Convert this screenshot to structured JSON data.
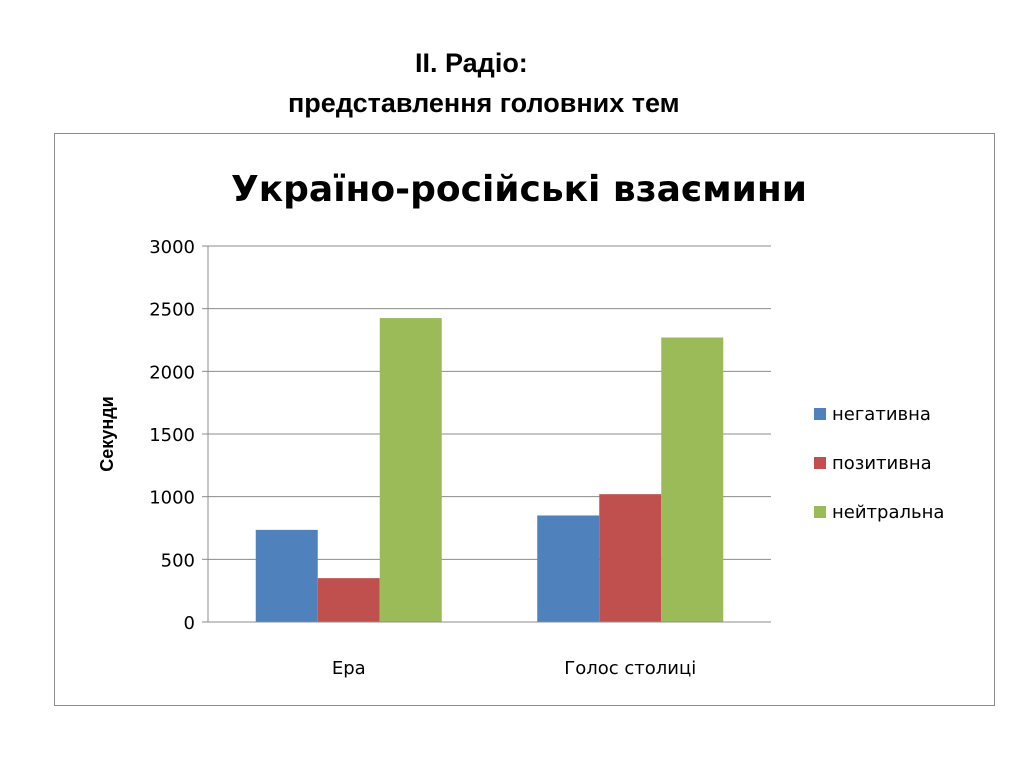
{
  "slide": {
    "title_line1": "ІІ. Радіо:",
    "title_line2": "представлення головних тем"
  },
  "chart_data": {
    "type": "bar",
    "title": "Україно-російські взаємини",
    "xlabel": "",
    "ylabel": "Секунди",
    "categories": [
      "Ера",
      "Голос столиці"
    ],
    "series": [
      {
        "name": "негативна",
        "color": "#4f81bd",
        "values": [
          735,
          850
        ]
      },
      {
        "name": "позитивна",
        "color": "#c0504d",
        "values": [
          350,
          1020
        ]
      },
      {
        "name": "нейтральна",
        "color": "#9bbb59",
        "values": [
          2425,
          2270
        ]
      }
    ],
    "ylim": [
      0,
      3000
    ],
    "yticks": [
      0,
      500,
      1000,
      1500,
      2000,
      2500,
      3000
    ],
    "grid": true,
    "legend_position": "right"
  }
}
